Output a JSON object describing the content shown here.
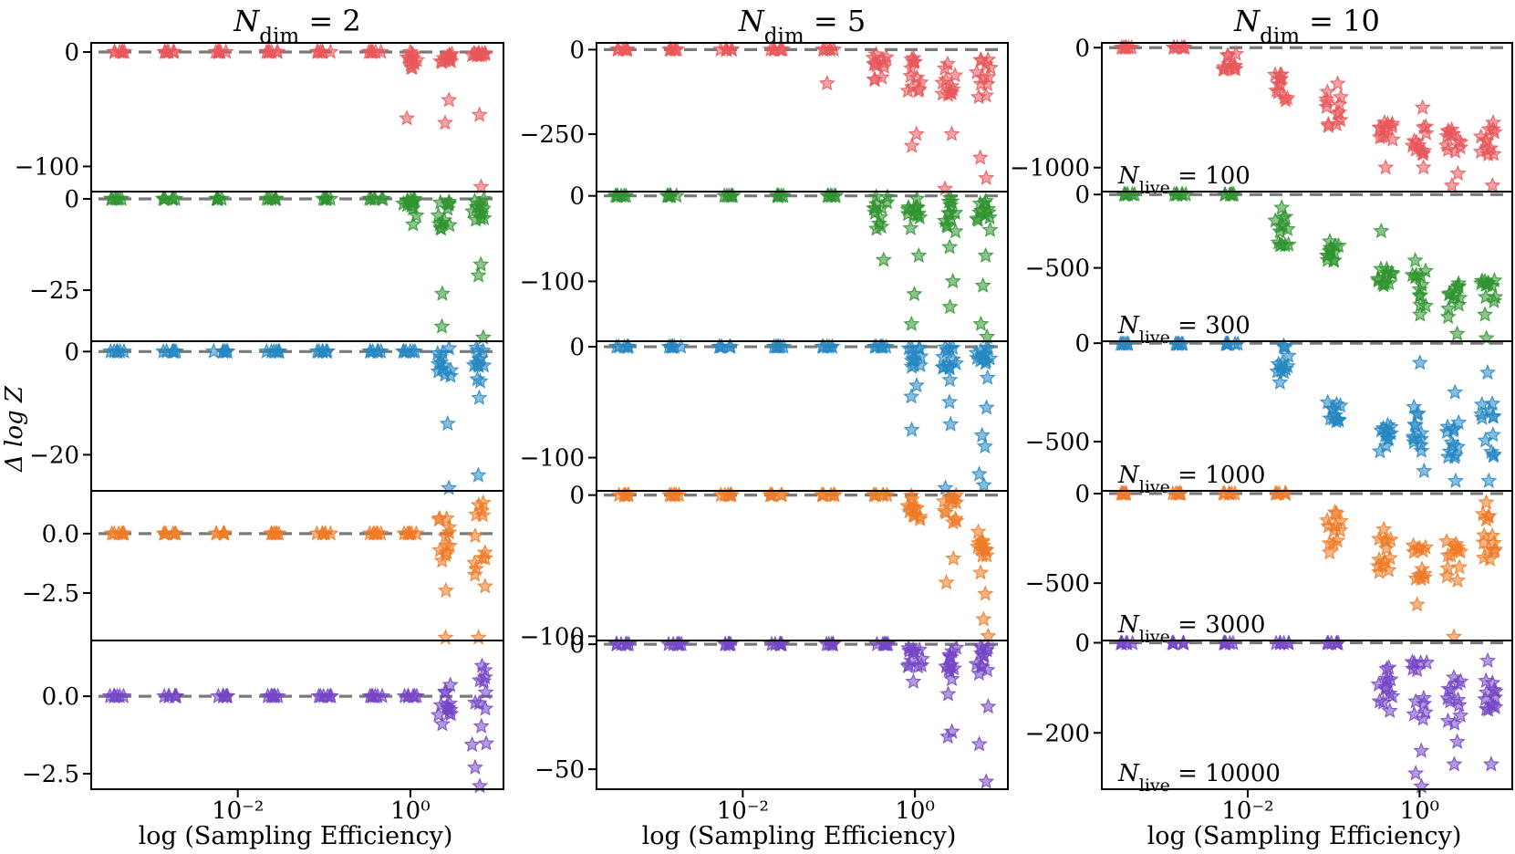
{
  "figure": {
    "ylabel": "Δ log Z",
    "xlabel": "log (Sampling Efficiency)",
    "xtick_labels": [
      "10⁻²",
      "10⁰"
    ]
  },
  "chart_data": {
    "type": "scatter",
    "marker": "star",
    "xscale": "log",
    "x_positions": [
      0.0004,
      0.0016,
      0.0063,
      0.025,
      0.1,
      0.4,
      1.0,
      2.5,
      6.3
    ],
    "x_tick_values": [
      0.01,
      1
    ],
    "xlim": [
      0.0002,
      12
    ],
    "reference_line": 0,
    "series_colors": {
      "100": "#e8575b",
      "300": "#2f9430",
      "1000": "#2687c2",
      "3000": "#ef7a26",
      "10000": "#7446c4"
    },
    "columns": [
      {
        "title": "N_dim = 2",
        "rows": [
          {
            "n_live": 100,
            "ylim": [
              -122,
              8
            ],
            "yticks": [
              0,
              -100
            ],
            "ytick_labels": [
              "0",
              "−100"
            ],
            "label": "",
            "spread_min": [
              0,
              0,
              0,
              0,
              0,
              0,
              -14,
              -9,
              -4
            ],
            "spread_max": [
              0,
              0,
              0,
              0,
              0,
              0,
              0,
              0,
              0
            ],
            "outliers": [
              [
                6,
                -58
              ],
              [
                7,
                -62
              ],
              [
                7,
                -42
              ],
              [
                8,
                -118
              ],
              [
                8,
                -55
              ]
            ]
          },
          {
            "n_live": 300,
            "ylim": [
              -39,
              2
            ],
            "yticks": [
              0,
              -25
            ],
            "ytick_labels": [
              "0",
              "−25"
            ],
            "label": "",
            "spread_min": [
              0,
              0,
              0,
              0,
              0,
              0,
              -5,
              -9,
              -6
            ],
            "spread_max": [
              0,
              0,
              0,
              0,
              0,
              0,
              0,
              0,
              0
            ],
            "outliers": [
              [
                6,
                -7
              ],
              [
                7,
                -26
              ],
              [
                7,
                -35
              ],
              [
                8,
                -18
              ],
              [
                8,
                -38
              ],
              [
                8,
                -21
              ]
            ]
          },
          {
            "n_live": 1000,
            "ylim": [
              -27,
              2
            ],
            "yticks": [
              0,
              -20
            ],
            "ytick_labels": [
              "0",
              "−20"
            ],
            "label": "",
            "spread_min": [
              0,
              0,
              0,
              0,
              0,
              0,
              0,
              -5,
              -6
            ],
            "spread_max": [
              0,
              0,
              0,
              0,
              0,
              0,
              0,
              1,
              1
            ],
            "outliers": [
              [
                7,
                -14
              ],
              [
                7,
                -26.5
              ],
              [
                8,
                -9
              ],
              [
                8,
                -24
              ]
            ]
          },
          {
            "n_live": 3000,
            "ylim": [
              -4.5,
              1.8
            ],
            "yticks": [
              0,
              -2.5
            ],
            "ytick_labels": [
              "0.0",
              "−2.5"
            ],
            "label": "",
            "spread_min": [
              0,
              0,
              0,
              0,
              0,
              0,
              0,
              -1.2,
              -2.3
            ],
            "spread_max": [
              0,
              0,
              0,
              0,
              0,
              0,
              0,
              1,
              1.3
            ],
            "outliers": [
              [
                7,
                -2.4
              ],
              [
                7,
                -4.4
              ],
              [
                8,
                -4.4
              ],
              [
                8,
                1.2
              ]
            ]
          },
          {
            "n_live": 10000,
            "ylim": [
              -3,
              1.8
            ],
            "yticks": [
              0,
              -2.5
            ],
            "ytick_labels": [
              "0.0",
              "−2.5"
            ],
            "label": "",
            "spread_min": [
              0,
              0,
              0,
              0,
              0,
              0,
              0,
              -0.7,
              -1.6
            ],
            "spread_max": [
              0,
              0,
              0,
              0,
              0,
              0,
              0,
              0.4,
              1.3
            ],
            "outliers": [
              [
                8,
                -2.3
              ],
              [
                8,
                -2.9
              ],
              [
                7,
                -0.9
              ]
            ]
          }
        ]
      },
      {
        "title": "N_dim = 5",
        "rows": [
          {
            "n_live": 100,
            "ylim": [
              -420,
              20
            ],
            "yticks": [
              0,
              -250
            ],
            "ytick_labels": [
              "0",
              "−250"
            ],
            "label": "",
            "spread_min": [
              0,
              0,
              0,
              0,
              0,
              -90,
              -130,
              -150,
              -170
            ],
            "spread_max": [
              0,
              0,
              0,
              0,
              0,
              0,
              -20,
              -40,
              -20
            ],
            "outliers": [
              [
                4,
                -100
              ],
              [
                6,
                -285
              ],
              [
                7,
                -420
              ],
              [
                7,
                -250
              ],
              [
                8,
                -320
              ],
              [
                8,
                -380
              ],
              [
                6,
                -250
              ]
            ]
          },
          {
            "n_live": 300,
            "ylim": [
              -170,
              5
            ],
            "yticks": [
              0,
              -100
            ],
            "ytick_labels": [
              "0",
              "−100"
            ],
            "label": "",
            "spread_min": [
              0,
              0,
              0,
              0,
              0,
              -40,
              -40,
              -45,
              -40
            ],
            "spread_max": [
              0,
              0,
              0,
              0,
              0,
              0,
              0,
              0,
              0
            ],
            "outliers": [
              [
                5,
                -75
              ],
              [
                6,
                -70
              ],
              [
                6,
                -115
              ],
              [
                6,
                -150
              ],
              [
                7,
                -60
              ],
              [
                7,
                -100
              ],
              [
                7,
                -130
              ],
              [
                8,
                -70
              ],
              [
                8,
                -105
              ],
              [
                8,
                -150
              ],
              [
                8,
                -165
              ]
            ]
          },
          {
            "n_live": 1000,
            "ylim": [
              -130,
              5
            ],
            "yticks": [
              0,
              -100
            ],
            "ytick_labels": [
              "0",
              "−100"
            ],
            "label": "",
            "spread_min": [
              0,
              0,
              0,
              0,
              0,
              0,
              -20,
              -20,
              -15
            ],
            "spread_max": [
              0,
              0,
              0,
              0,
              0,
              0,
              0,
              0,
              0
            ],
            "outliers": [
              [
                6,
                -35
              ],
              [
                6,
                -45
              ],
              [
                6,
                -75
              ],
              [
                7,
                -30
              ],
              [
                7,
                -50
              ],
              [
                7,
                -70
              ],
              [
                7,
                -130
              ],
              [
                8,
                -28
              ],
              [
                8,
                -55
              ],
              [
                8,
                -80
              ],
              [
                8,
                -90
              ],
              [
                8,
                -115
              ],
              [
                8,
                -125
              ]
            ]
          },
          {
            "n_live": 3000,
            "ylim": [
              -103,
              3
            ],
            "yticks": [
              0,
              -100
            ],
            "ytick_labels": [
              "0",
              "−100"
            ],
            "label": "",
            "spread_min": [
              0,
              0,
              0,
              0,
              0,
              0,
              -18,
              -20,
              -45
            ],
            "spread_max": [
              0,
              0,
              0,
              0,
              0,
              0,
              0,
              0,
              -25
            ],
            "outliers": [
              [
                7,
                -45
              ],
              [
                7,
                -62
              ],
              [
                8,
                -55
              ],
              [
                8,
                -70
              ],
              [
                8,
                -88
              ],
              [
                8,
                -100
              ]
            ]
          },
          {
            "n_live": 10000,
            "ylim": [
              -58,
              1.5
            ],
            "yticks": [
              0,
              -50
            ],
            "ytick_labels": [
              "0",
              "−50"
            ],
            "label": "",
            "spread_min": [
              0,
              0,
              0,
              0,
              0,
              0,
              -12,
              -15,
              -12
            ],
            "spread_max": [
              0,
              0,
              0,
              0,
              0,
              0,
              0,
              0,
              0
            ],
            "outliers": [
              [
                6,
                -15
              ],
              [
                7,
                -35
              ],
              [
                7,
                -20
              ],
              [
                8,
                -25
              ],
              [
                8,
                -40
              ],
              [
                8,
                -55
              ],
              [
                7,
                -37
              ]
            ]
          }
        ]
      },
      {
        "title": "N_dim = 10",
        "rows": [
          {
            "n_live": 100,
            "ylim": [
              -1200,
              40
            ],
            "yticks": [
              0,
              -1000
            ],
            "ytick_labels": [
              "0",
              "−1000"
            ],
            "label": "N_live = 100",
            "spread_min": [
              0,
              0,
              -200,
              -450,
              -700,
              -800,
              -900,
              -900,
              -900
            ],
            "spread_max": [
              0,
              0,
              -50,
              -200,
              -350,
              -600,
              -650,
              -650,
              -600
            ],
            "outliers": [
              [
                4,
                -300
              ],
              [
                5,
                -1000
              ],
              [
                6,
                -1000
              ],
              [
                7,
                -1150
              ],
              [
                8,
                -1150
              ],
              [
                6,
                -500
              ],
              [
                7,
                -1050
              ]
            ]
          },
          {
            "n_live": 300,
            "ylim": [
              -1000,
              20
            ],
            "yticks": [
              0,
              -500
            ],
            "ytick_labels": [
              "0",
              "−500"
            ],
            "label": "N_live = 300",
            "spread_min": [
              0,
              0,
              0,
              -350,
              -480,
              -650,
              -850,
              -850,
              -850
            ],
            "spread_max": [
              0,
              0,
              0,
              -150,
              -300,
              -500,
              -500,
              -550,
              -550
            ],
            "outliers": [
              [
                5,
                -250
              ],
              [
                6,
                -450
              ],
              [
                7,
                -950
              ],
              [
                8,
                -980
              ],
              [
                3,
                -90
              ]
            ]
          },
          {
            "n_live": 1000,
            "ylim": [
              -750,
              10
            ],
            "yticks": [
              0,
              -500
            ],
            "ytick_labels": [
              "0",
              "−500"
            ],
            "label": "N_live = 1000",
            "spread_min": [
              0,
              0,
              0,
              -150,
              -400,
              -550,
              -550,
              -600,
              -600
            ],
            "spread_max": [
              0,
              0,
              0,
              0,
              -300,
              -400,
              -300,
              -400,
              -300
            ],
            "outliers": [
              [
                6,
                -100
              ],
              [
                6,
                -650
              ],
              [
                7,
                -250
              ],
              [
                7,
                -700
              ],
              [
                8,
                -150
              ],
              [
                8,
                -700
              ],
              [
                3,
                -200
              ]
            ]
          },
          {
            "n_live": 3000,
            "ylim": [
              -820,
              15
            ],
            "yticks": [
              0,
              -500
            ],
            "ytick_labels": [
              "0",
              "−500"
            ],
            "label": "N_live = 3000",
            "spread_min": [
              0,
              0,
              0,
              0,
              -330,
              -440,
              -500,
              -500,
              -480
            ],
            "spread_max": [
              0,
              0,
              0,
              0,
              -100,
              -250,
              -290,
              -250,
              -100
            ],
            "outliers": [
              [
                5,
                -200
              ],
              [
                6,
                -620
              ],
              [
                7,
                -800
              ],
              [
                8,
                -50
              ],
              [
                8,
                -130
              ]
            ]
          },
          {
            "n_live": 10000,
            "ylim": [
              -325,
              5
            ],
            "yticks": [
              0,
              -200
            ],
            "ytick_labels": [
              "0",
              "−200"
            ],
            "label": "N_live = 10000",
            "spread_min": [
              0,
              0,
              0,
              0,
              0,
              -160,
              -170,
              -190,
              -160
            ],
            "spread_max": [
              0,
              0,
              0,
              0,
              0,
              -50,
              -40,
              -70,
              -60
            ],
            "outliers": [
              [
                5,
                -80
              ],
              [
                6,
                -240
              ],
              [
                6,
                -290
              ],
              [
                6,
                -320
              ],
              [
                7,
                -270
              ],
              [
                7,
                -220
              ],
              [
                8,
                -270
              ],
              [
                8,
                -40
              ]
            ]
          }
        ]
      }
    ]
  }
}
